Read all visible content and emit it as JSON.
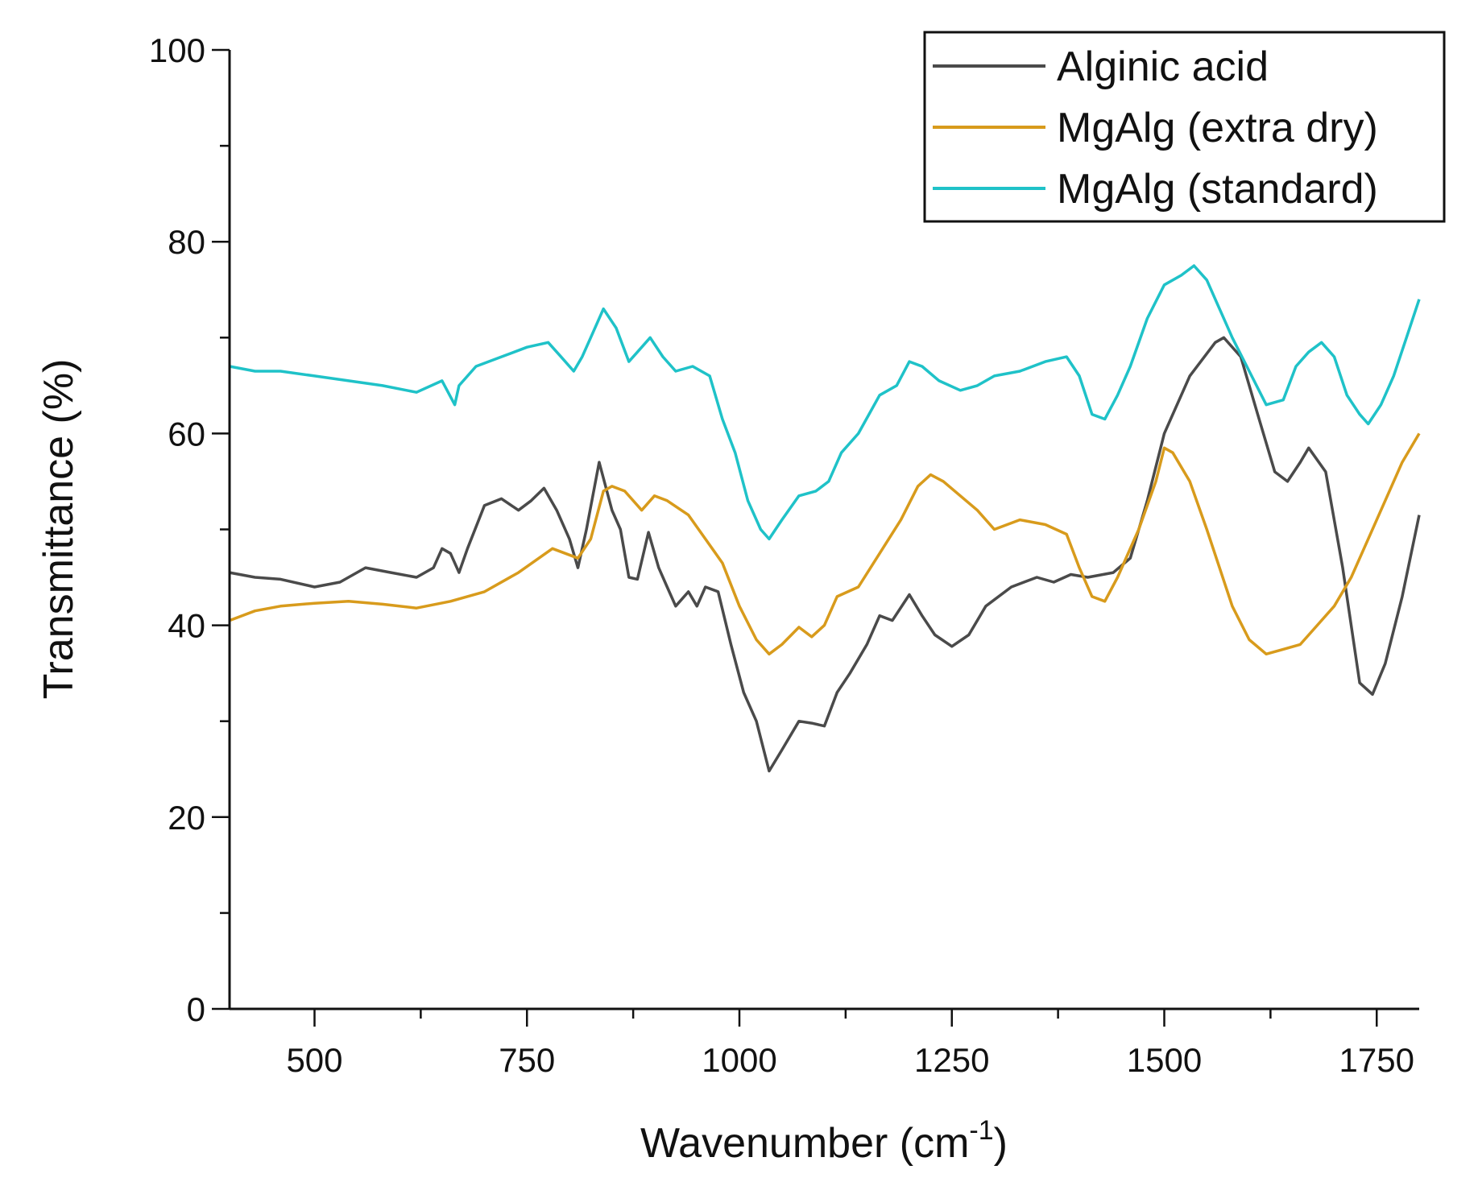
{
  "chart_data": {
    "type": "line",
    "xlabel_main": "Wavenumber (cm",
    "xlabel_sup": "-1",
    "xlabel_close": ")",
    "ylabel": "Transmittance (%)",
    "xlim": [
      400,
      1800
    ],
    "ylim": [
      0,
      100
    ],
    "xticks": [
      500,
      750,
      1000,
      1250,
      1500,
      1750
    ],
    "yticks": [
      0,
      20,
      40,
      60,
      80,
      100
    ],
    "grid": false,
    "legend_position": "top-right",
    "series": [
      {
        "name": "Alginic acid",
        "color": "#4a4a4a",
        "x": [
          400,
          430,
          460,
          500,
          530,
          560,
          590,
          620,
          640,
          650,
          660,
          670,
          680,
          700,
          720,
          740,
          755,
          770,
          785,
          800,
          810,
          820,
          835,
          850,
          860,
          870,
          880,
          893,
          905,
          915,
          925,
          940,
          950,
          960,
          975,
          990,
          1005,
          1020,
          1035,
          1050,
          1070,
          1085,
          1100,
          1115,
          1130,
          1150,
          1165,
          1180,
          1200,
          1215,
          1230,
          1250,
          1270,
          1290,
          1320,
          1350,
          1370,
          1390,
          1410,
          1440,
          1460,
          1480,
          1500,
          1530,
          1560,
          1570,
          1590,
          1610,
          1630,
          1645,
          1660,
          1670,
          1690,
          1710,
          1730,
          1745,
          1760,
          1780,
          1800
        ],
        "y": [
          45.5,
          45,
          44.8,
          44,
          44.5,
          46,
          45.5,
          45,
          46,
          48,
          47.5,
          45.5,
          48,
          52.5,
          53.2,
          52,
          53,
          54.3,
          52,
          49,
          46,
          50,
          57,
          52,
          50,
          45,
          44.8,
          49.7,
          46,
          44,
          42,
          43.5,
          42,
          44,
          43.5,
          38,
          33,
          30,
          24.8,
          27,
          30,
          29.8,
          29.5,
          33,
          35,
          38,
          41,
          40.5,
          43.2,
          41,
          39,
          37.8,
          39,
          42,
          44,
          45,
          44.5,
          45.3,
          45,
          45.5,
          47,
          53,
          60,
          66,
          69.5,
          70,
          68,
          62,
          56,
          55,
          57,
          58.5,
          56,
          46,
          34,
          32.8,
          36,
          43,
          51.5
        ]
      },
      {
        "name": "MgAlg (extra dry)",
        "color": "#d89b1c",
        "x": [
          400,
          430,
          460,
          500,
          540,
          580,
          620,
          660,
          700,
          740,
          780,
          810,
          825,
          840,
          850,
          865,
          885,
          900,
          915,
          940,
          960,
          980,
          1000,
          1020,
          1035,
          1050,
          1070,
          1085,
          1100,
          1115,
          1140,
          1165,
          1190,
          1210,
          1225,
          1240,
          1260,
          1280,
          1300,
          1330,
          1360,
          1385,
          1400,
          1415,
          1430,
          1445,
          1470,
          1490,
          1500,
          1510,
          1530,
          1550,
          1565,
          1580,
          1600,
          1620,
          1640,
          1660,
          1680,
          1700,
          1720,
          1740,
          1760,
          1780,
          1800
        ],
        "y": [
          40.5,
          41.5,
          42,
          42.3,
          42.5,
          42.2,
          41.8,
          42.5,
          43.5,
          45.5,
          48,
          47,
          49,
          54,
          54.5,
          54,
          52,
          53.5,
          53,
          51.5,
          49,
          46.5,
          42,
          38.5,
          37,
          38,
          39.8,
          38.8,
          40,
          43,
          44,
          47.5,
          51,
          54.5,
          55.7,
          55,
          53.5,
          52,
          50,
          51,
          50.5,
          49.5,
          46,
          43,
          42.5,
          45,
          50,
          55,
          58.5,
          58,
          55,
          50,
          46,
          42,
          38.5,
          37,
          37.5,
          38,
          40,
          42,
          45,
          49,
          53,
          57,
          60
        ]
      },
      {
        "name": "MgAlg (standard)",
        "color": "#1fc2c8",
        "x": [
          400,
          430,
          460,
          500,
          540,
          580,
          620,
          650,
          665,
          670,
          690,
          720,
          750,
          775,
          790,
          805,
          815,
          825,
          840,
          855,
          870,
          880,
          895,
          910,
          925,
          945,
          965,
          980,
          995,
          1010,
          1025,
          1035,
          1050,
          1070,
          1090,
          1105,
          1120,
          1140,
          1165,
          1185,
          1200,
          1215,
          1235,
          1260,
          1280,
          1300,
          1330,
          1360,
          1385,
          1400,
          1415,
          1430,
          1445,
          1460,
          1480,
          1500,
          1520,
          1535,
          1550,
          1565,
          1580,
          1600,
          1620,
          1640,
          1655,
          1670,
          1685,
          1700,
          1715,
          1730,
          1740,
          1755,
          1770,
          1785,
          1800
        ],
        "y": [
          67,
          66.5,
          66.5,
          66,
          65.5,
          65,
          64.3,
          65.5,
          63,
          65,
          67,
          68,
          69,
          69.5,
          68,
          66.5,
          68,
          70,
          73,
          71,
          67.5,
          68.5,
          70,
          68,
          66.5,
          67,
          66,
          61.5,
          58,
          53,
          50,
          49,
          51,
          53.5,
          54,
          55,
          58,
          60,
          64,
          65,
          67.5,
          67,
          65.5,
          64.5,
          65,
          66,
          66.5,
          67.5,
          68,
          66,
          62,
          61.5,
          64,
          67,
          72,
          75.5,
          76.5,
          77.5,
          76,
          73,
          70,
          66.5,
          63,
          63.5,
          67,
          68.5,
          69.5,
          68,
          64,
          62,
          61,
          63,
          66,
          70,
          74
        ]
      }
    ]
  }
}
